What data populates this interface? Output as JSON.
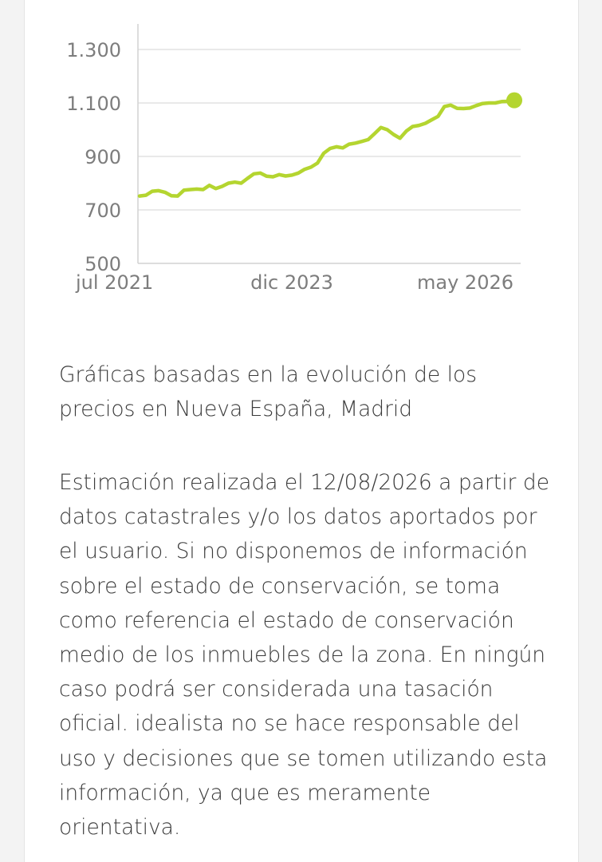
{
  "chart_data": {
    "type": "line",
    "x_tick_labels": [
      "jul 2021",
      "dic 2023",
      "may 2026"
    ],
    "y_tick_labels": [
      "1.300",
      "1.100",
      "900",
      "700",
      "500"
    ],
    "y_ticks": [
      1300,
      1100,
      900,
      700,
      500
    ],
    "ylim": [
      500,
      1300
    ],
    "grid": true,
    "line_color": "#b4d530",
    "series": [
      {
        "x": [
          "2021-07",
          "2021-08",
          "2021-09",
          "2021-10",
          "2021-11",
          "2021-12",
          "2022-01",
          "2022-02",
          "2022-03",
          "2022-04",
          "2022-05",
          "2022-06",
          "2022-07",
          "2022-08",
          "2022-09",
          "2022-10",
          "2022-11",
          "2022-12",
          "2023-01",
          "2023-02",
          "2023-03",
          "2023-04",
          "2023-05",
          "2023-06",
          "2023-07",
          "2023-08",
          "2023-09",
          "2023-10",
          "2023-11",
          "2023-12",
          "2024-01",
          "2024-02",
          "2024-03",
          "2024-04",
          "2024-05",
          "2024-06",
          "2024-07",
          "2024-08",
          "2024-09",
          "2024-10",
          "2024-11",
          "2024-12",
          "2025-01",
          "2025-02",
          "2025-03",
          "2025-04",
          "2025-05",
          "2025-06",
          "2025-07",
          "2025-08",
          "2025-09",
          "2025-10",
          "2025-11",
          "2025-12",
          "2026-01",
          "2026-02",
          "2026-03",
          "2026-04",
          "2026-05",
          "2026-06"
        ],
        "y": [
          752,
          755,
          770,
          772,
          766,
          753,
          752,
          774,
          776,
          778,
          776,
          792,
          780,
          788,
          800,
          804,
          800,
          818,
          835,
          838,
          826,
          824,
          832,
          827,
          830,
          838,
          852,
          860,
          875,
          912,
          930,
          936,
          932,
          946,
          950,
          956,
          963,
          985,
          1008,
          1000,
          982,
          968,
          995,
          1012,
          1016,
          1024,
          1037,
          1050,
          1087,
          1092,
          1080,
          1079,
          1081,
          1090,
          1098,
          1100,
          1100,
          1105,
          1106,
          1110
        ]
      }
    ]
  },
  "caption": "Gráficas basadas en la evolución de los precios en Nueva España, Madrid",
  "disclaimer": "Estimación realizada el 12/08/2026 a partir de datos catastrales y/o los datos aportados por el usuario. Si no disponemos de información sobre el estado de conservación, se toma como referencia el estado de conservación medio de los inmuebles de la zona. En ningún caso podrá ser considerada una tasación oficial. idealista no se hace responsable del uso y decisiones que se tomen utilizando esta información, ya que es meramente orientativa."
}
